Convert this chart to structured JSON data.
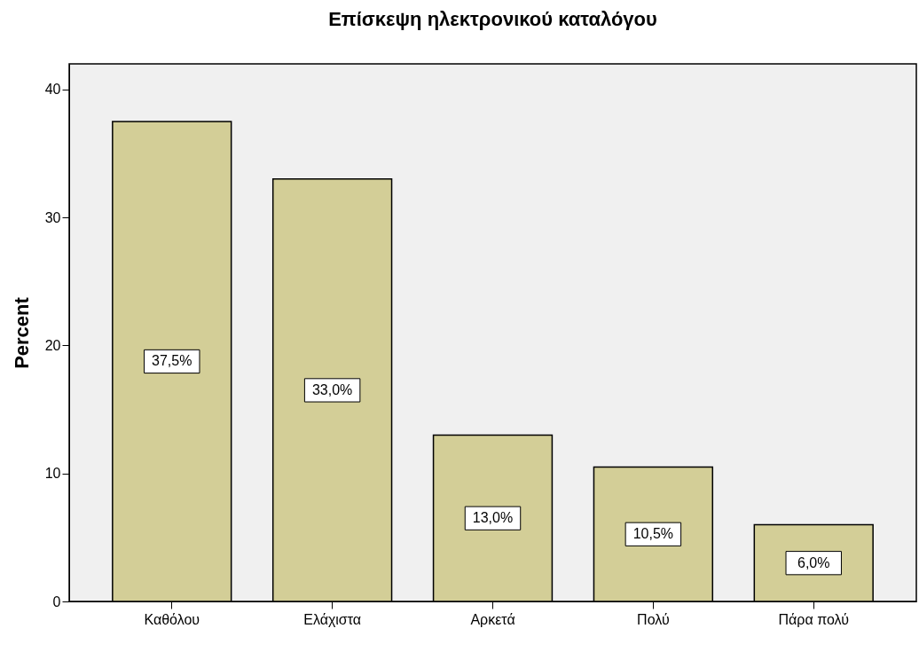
{
  "chart_data": {
    "type": "bar",
    "title": "Επίσκεψη ηλεκτρονικού καταλόγου",
    "ylabel": "Percent",
    "categories": [
      "Καθόλου",
      "Ελάχιστα",
      "Αρκετά",
      "Πολύ",
      "Πάρα πολύ"
    ],
    "values": [
      37.5,
      33.0,
      13.0,
      10.5,
      6.0
    ],
    "value_labels": [
      "37,5%",
      "33,0%",
      "13,0%",
      "10,5%",
      "6,0%"
    ],
    "color": "#d3ce97",
    "ylim": [
      0,
      42
    ],
    "yticks": [
      0,
      10,
      20,
      30,
      40
    ],
    "grid": false
  }
}
